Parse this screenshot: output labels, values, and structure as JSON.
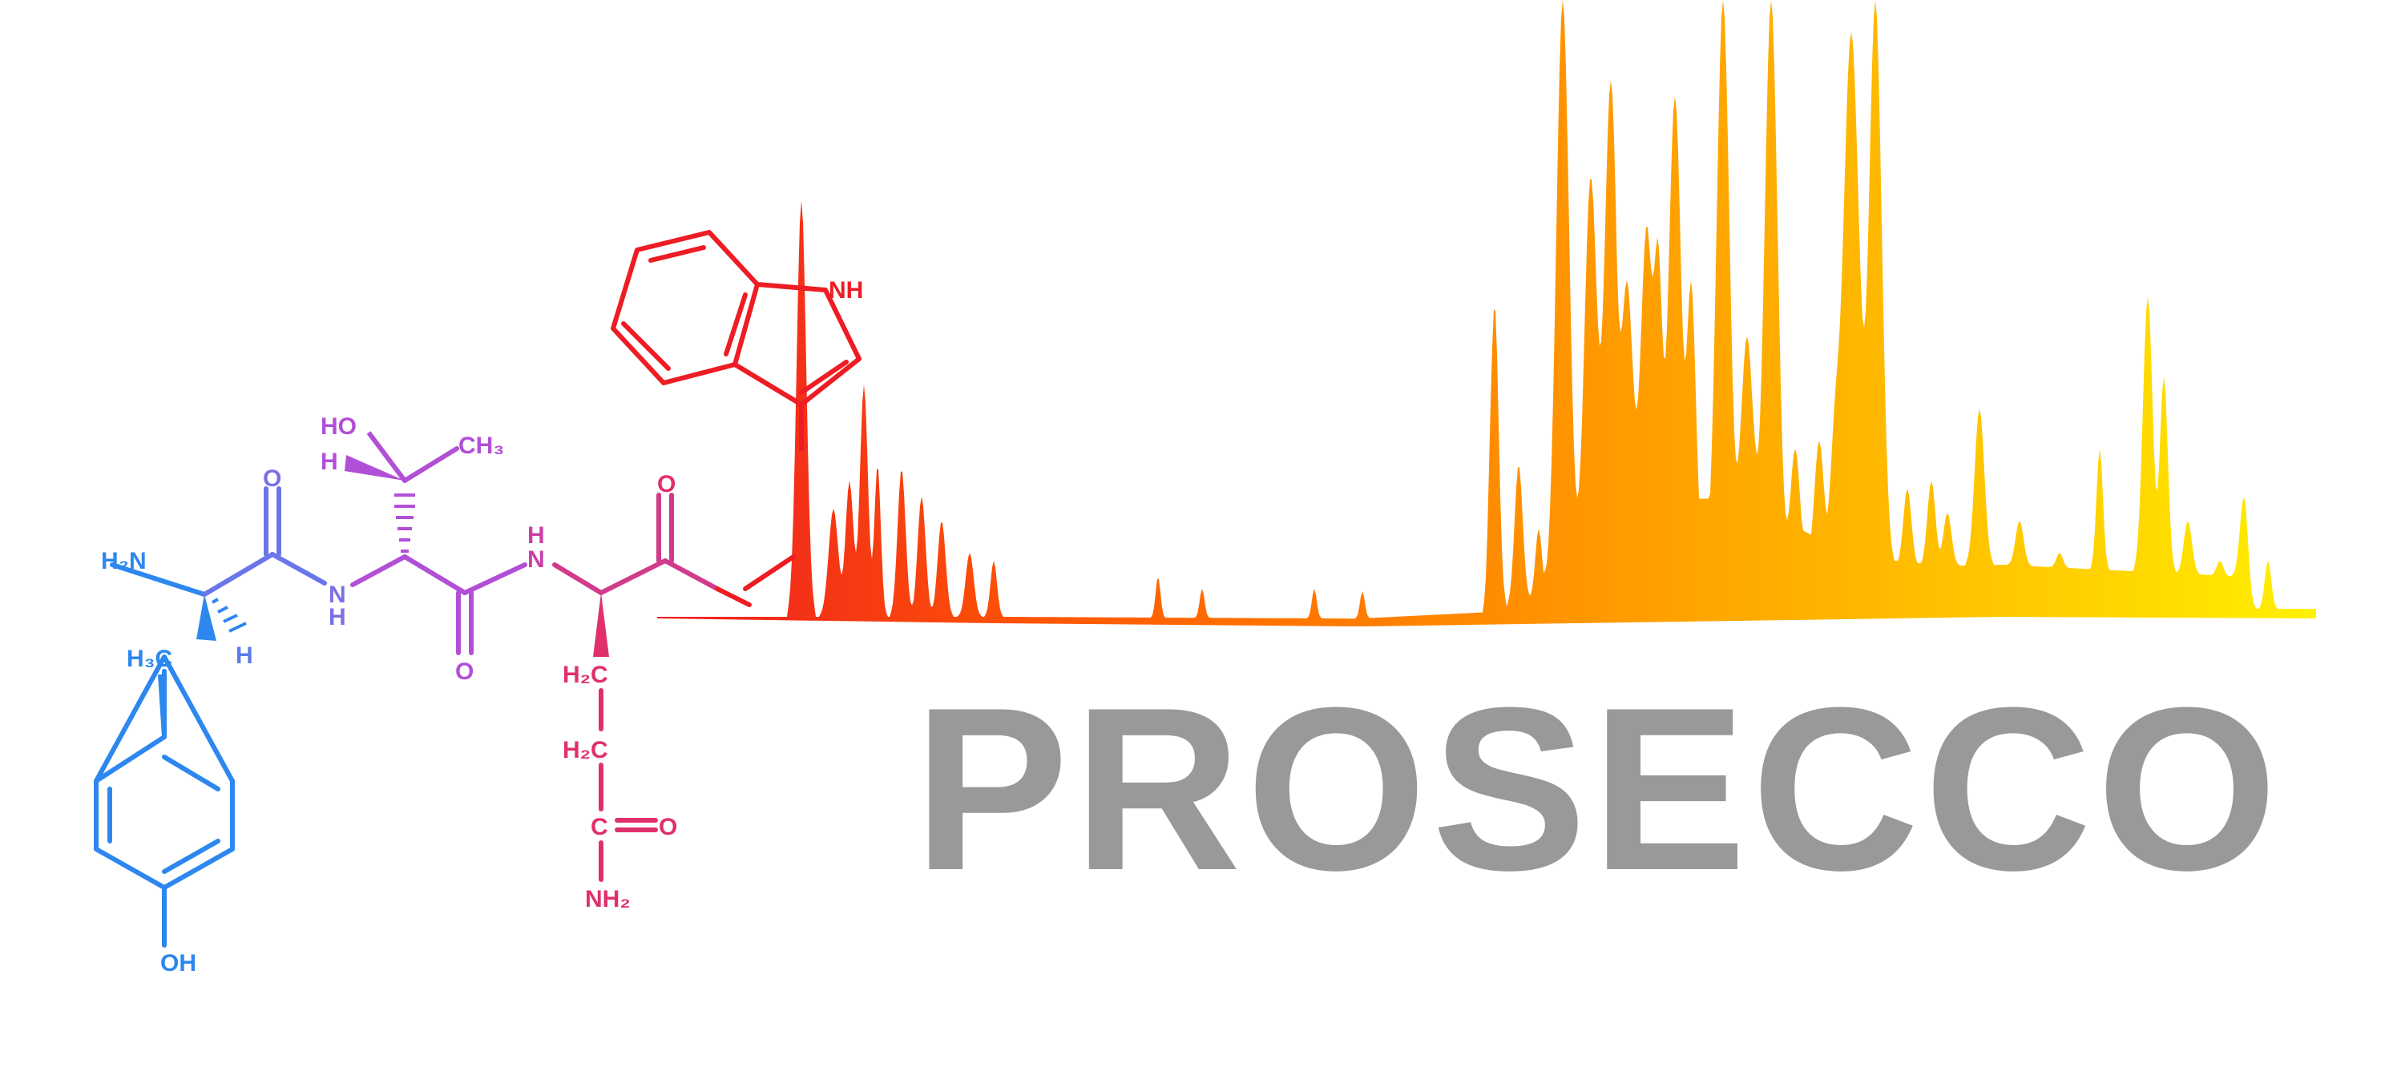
{
  "logo": {
    "wordmark": "PROSECCO",
    "wordmark_color": "#999999"
  },
  "molecule": {
    "atom_labels": {
      "h2n": "H₂N",
      "h3c": "H₃C",
      "h_alpha1": "H",
      "oh": "OH",
      "o1": "O",
      "nh1": "N",
      "nh1_h": "H",
      "ho": "HO",
      "h_thr": "H",
      "ch3": "CH₃",
      "o2": "O",
      "nh2_h": "H",
      "nh2": "N",
      "o3": "O",
      "h2c_1": "H₂C",
      "h2c_2": "H₂C",
      "c_amide": "C",
      "o_amide": "O",
      "nh2_amide": "NH₂",
      "nh_indole": "NH"
    },
    "colors": {
      "tyrosine": "#2d87ef",
      "ala_link": "#7b6fe6",
      "threonine": "#b14fd6",
      "backbone": "#c940a8",
      "glutamine": "#e0306c",
      "tryptophan": "#ee1c24"
    }
  },
  "spectrum": {
    "gradient_colors": [
      "#ee1c24",
      "#ff5a00",
      "#ff8c00",
      "#ffb300",
      "#ffd600",
      "#fff200"
    ]
  }
}
